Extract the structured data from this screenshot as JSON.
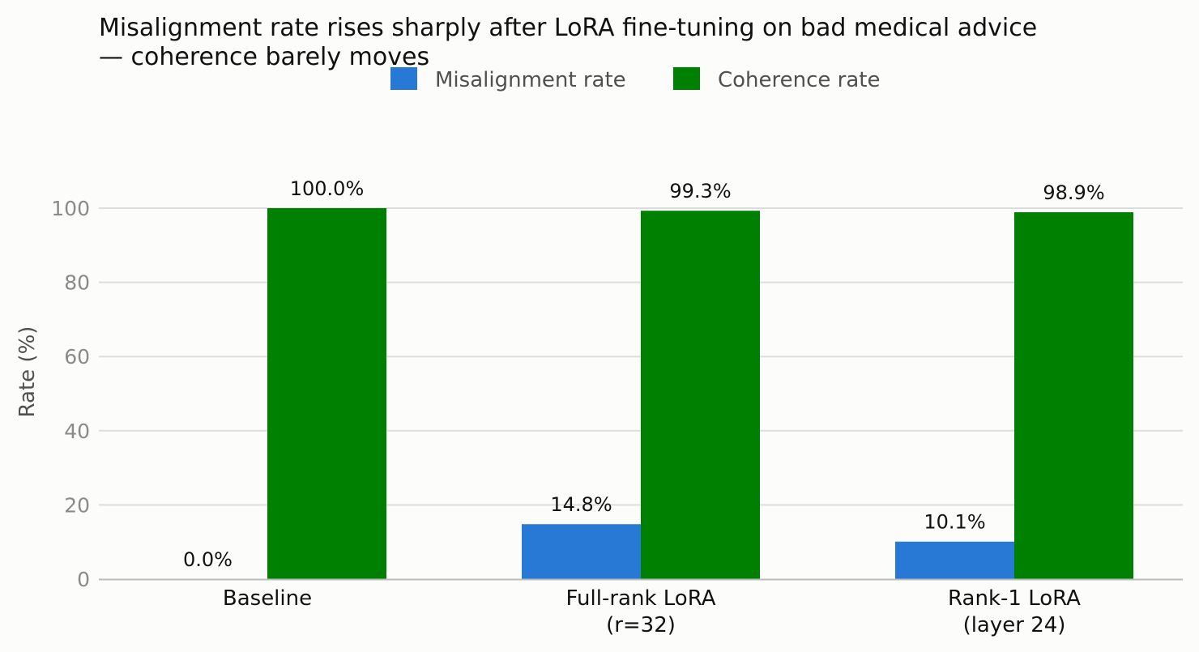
{
  "chart_data": {
    "type": "bar",
    "title_lines": [
      "Misalignment rate rises sharply after LoRA fine-tuning on bad medical advice",
      "— coherence barely moves"
    ],
    "xlabel": "",
    "ylabel": "Rate (%)",
    "categories": [
      [
        "Baseline"
      ],
      [
        "Full-rank LoRA",
        "(r=32)"
      ],
      [
        "Rank-1 LoRA",
        "(layer 24)"
      ]
    ],
    "series": [
      {
        "name": "Misalignment rate",
        "color": "#2878d6",
        "values": [
          0.0,
          14.8,
          10.1
        ],
        "labels": [
          "0.0%",
          "14.8%",
          "10.1%"
        ]
      },
      {
        "name": "Coherence rate",
        "color": "#008000",
        "values": [
          100.0,
          99.3,
          98.9
        ],
        "labels": [
          "100.0%",
          "99.3%",
          "98.9%"
        ]
      }
    ],
    "ylim": [
      0,
      100
    ],
    "yticks": [
      0,
      20,
      40,
      60,
      80,
      100
    ],
    "grid": true,
    "legend_position": "top-center"
  }
}
